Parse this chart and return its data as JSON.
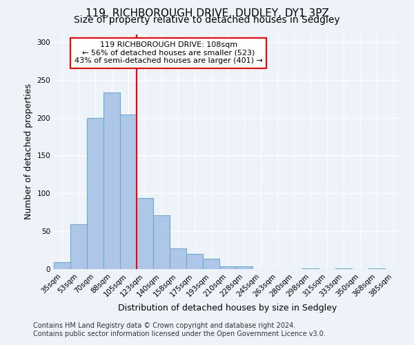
{
  "title": "119, RICHBOROUGH DRIVE, DUDLEY, DY1 3PZ",
  "subtitle": "Size of property relative to detached houses in Sedgley",
  "xlabel": "Distribution of detached houses by size in Sedgley",
  "ylabel": "Number of detached properties",
  "bin_labels": [
    "35sqm",
    "53sqm",
    "70sqm",
    "88sqm",
    "105sqm",
    "123sqm",
    "140sqm",
    "158sqm",
    "175sqm",
    "193sqm",
    "210sqm",
    "228sqm",
    "245sqm",
    "263sqm",
    "280sqm",
    "298sqm",
    "315sqm",
    "333sqm",
    "350sqm",
    "368sqm",
    "385sqm"
  ],
  "bin_values": [
    9,
    59,
    200,
    233,
    204,
    94,
    71,
    27,
    20,
    14,
    4,
    4,
    0,
    0,
    0,
    1,
    0,
    1,
    0,
    1,
    0
  ],
  "bar_color": "#aec6e8",
  "bar_edge_color": "#6aaad4",
  "vline_color": "red",
  "vline_pos": 4.5,
  "annotation_text": "119 RICHBOROUGH DRIVE: 108sqm\n← 56% of detached houses are smaller (523)\n43% of semi-detached houses are larger (401) →",
  "annotation_box_color": "white",
  "annotation_box_edge_color": "red",
  "ylim": [
    0,
    310
  ],
  "yticks": [
    0,
    50,
    100,
    150,
    200,
    250,
    300
  ],
  "footer_line1": "Contains HM Land Registry data © Crown copyright and database right 2024.",
  "footer_line2": "Contains public sector information licensed under the Open Government Licence v3.0.",
  "background_color": "#eef2f9",
  "grid_color": "white",
  "title_fontsize": 11,
  "subtitle_fontsize": 10,
  "xlabel_fontsize": 9,
  "ylabel_fontsize": 9,
  "tick_fontsize": 7.5,
  "footer_fontsize": 7,
  "annot_fontsize": 8
}
